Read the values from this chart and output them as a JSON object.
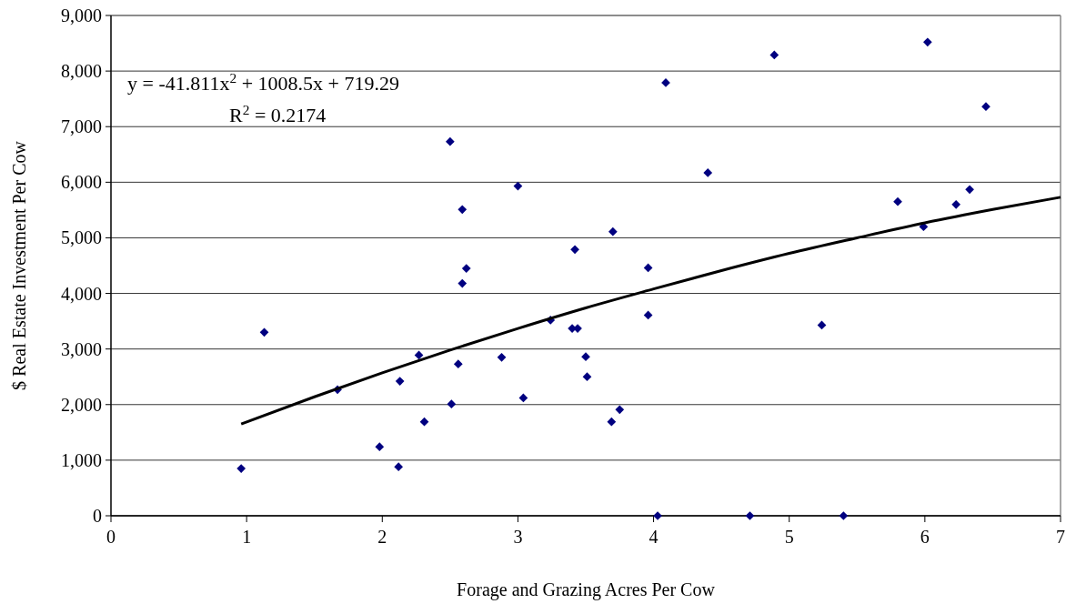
{
  "chart_data": {
    "type": "scatter",
    "xlabel": "Forage and Grazing Acres Per Cow",
    "ylabel": "$ Real Estate Investment Per Cow",
    "xlim": [
      0,
      7
    ],
    "xticks": [
      0,
      1,
      2,
      3,
      4,
      5,
      6,
      7
    ],
    "ylim": [
      0,
      9000
    ],
    "yticks": [
      {
        "value": 0,
        "label": "0"
      },
      {
        "value": 1000,
        "label": "1,000"
      },
      {
        "value": 2000,
        "label": "2,000"
      },
      {
        "value": 3000,
        "label": "3,000"
      },
      {
        "value": 4000,
        "label": "4,000"
      },
      {
        "value": 5000,
        "label": "5,000"
      },
      {
        "value": 6000,
        "label": "6,000"
      },
      {
        "value": 7000,
        "label": "7,000"
      },
      {
        "value": 8000,
        "label": "8,000"
      },
      {
        "value": 9000,
        "label": "9,000"
      }
    ],
    "grid": "y",
    "marker": "diamond",
    "series": [
      {
        "color": "#000080",
        "x": [
          0.96,
          1.13,
          1.67,
          1.98,
          2.12,
          2.13,
          2.27,
          2.31,
          2.5,
          2.51,
          2.56,
          2.59,
          2.59,
          2.62,
          2.88,
          3.0,
          3.04,
          3.24,
          3.4,
          3.44,
          3.42,
          3.5,
          3.51,
          3.69,
          3.7,
          3.75,
          3.96,
          3.96,
          4.03,
          4.09,
          4.4,
          4.71,
          4.89,
          5.24,
          5.4,
          5.8,
          5.99,
          6.02,
          6.23,
          6.33,
          6.45
        ],
        "values": [
          850,
          3300,
          2270,
          1240,
          880,
          2420,
          2890,
          1690,
          6730,
          2010,
          2730,
          4180,
          5510,
          4450,
          2850,
          5930,
          2120,
          3520,
          3370,
          3370,
          4790,
          2860,
          2500,
          1690,
          5110,
          1910,
          4460,
          3610,
          0,
          7790,
          6170,
          0,
          8290,
          3430,
          0,
          5650,
          5200,
          8520,
          5600,
          5870,
          7360
        ]
      },
      {
        "type": "line",
        "color": "#000000",
        "marker": "none",
        "line_style": "solid",
        "x": [
          0.96,
          1.5,
          2,
          2.5,
          3,
          3.5,
          4,
          4.5,
          5,
          5.5,
          6,
          6.5,
          7
        ],
        "values": [
          1650,
          2140,
          2570,
          2980,
          3370,
          3740,
          4080,
          4410,
          4720,
          5000,
          5270,
          5510,
          5730
        ]
      }
    ],
    "annotations": [
      "y = -41.811x$^{2}$ + 1008.5x + 719.29",
      "R$^{2}$ = 0.2174"
    ]
  }
}
